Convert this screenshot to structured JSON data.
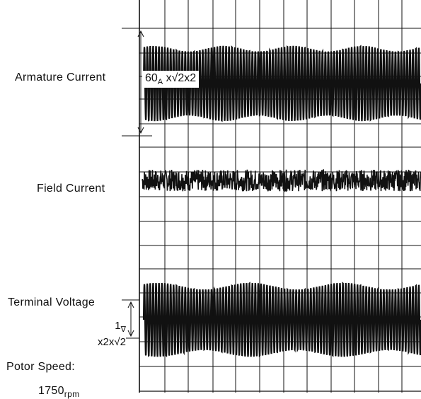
{
  "labels": {
    "armature_current": "Armature Current",
    "field_current": "Field Current",
    "terminal_voltage": "Terminal Voltage",
    "rotor_speed_label": "Potor Speed:",
    "rotor_speed_value": "1750",
    "rotor_speed_unit": "rpm"
  },
  "scales": {
    "armature": {
      "value": "60",
      "unit": "A",
      "factor": "x√2x2"
    },
    "voltage": {
      "value": "1",
      "unit": "∇",
      "factor": "x2x√2"
    }
  },
  "chart_data": {
    "type": "line",
    "grid": true,
    "grid_color": "#111111",
    "trace_color": "#111111",
    "grid_divisions": {
      "columns": 12,
      "rows": 11
    },
    "series": [
      {
        "id": "armature",
        "shape": "ac",
        "cycles": 95,
        "amplitude_div": 1.45,
        "envelope_mod": 0.08,
        "envelope_cycles": 4
      },
      {
        "id": "field",
        "shape": "noise",
        "mean_div": 0.25,
        "amplitude_div": 0.45
      },
      {
        "id": "voltage",
        "shape": "ac",
        "cycles": 95,
        "amplitude_div": 1.4,
        "envelope_mod": 0.1,
        "envelope_cycles": 3
      }
    ]
  }
}
